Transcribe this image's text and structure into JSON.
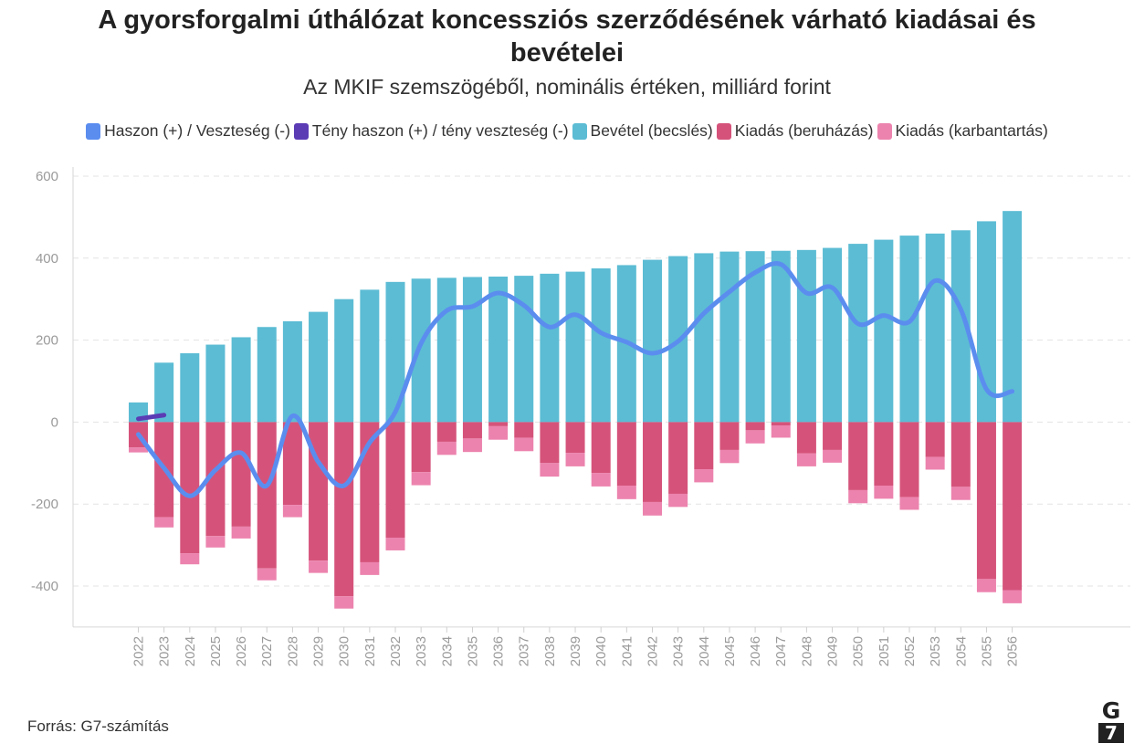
{
  "colors": {
    "haszon": "#5b8def",
    "teny": "#5b3cb5",
    "bevetel": "#5cbcd4",
    "beruhazas": "#d5537b",
    "karbantartas": "#ec83ae"
  },
  "footer": {
    "source": "Forrás: G7-számítás",
    "logo_top": "G",
    "logo_bottom": "7"
  },
  "chart_data": {
    "type": "bar",
    "title": "A gyorsforgalmi úthálózat koncessziós szerződésének várható kiadásai és bevételei",
    "subtitle": "Az MKIF szemszögéből, nominális értéken, milliárd forint",
    "legend": [
      "Haszon (+) / Veszteség (-)",
      "Tény haszon (+) / tény veszteség (-)",
      "Bevétel (becslés)",
      "Kiadás (beruházás)",
      "Kiadás (karbantartás)"
    ],
    "legend_position": "top",
    "ylim": [
      -500,
      600
    ],
    "yticks": [
      -400,
      -200,
      0,
      200,
      400,
      600
    ],
    "grid": true,
    "categories": [
      "2022",
      "2023",
      "2024",
      "2025",
      "2026",
      "2027",
      "2028",
      "2029",
      "2030",
      "2031",
      "2032",
      "2033",
      "2034",
      "2035",
      "2036",
      "2037",
      "2038",
      "2039",
      "2040",
      "2041",
      "2042",
      "2043",
      "2044",
      "2045",
      "2046",
      "2047",
      "2048",
      "2049",
      "2050",
      "2051",
      "2052",
      "2053",
      "2054",
      "2055",
      "2056"
    ],
    "series": [
      {
        "name": "Bevétel (becslés)",
        "type": "bar",
        "values": [
          48,
          145,
          168,
          189,
          207,
          232,
          246,
          269,
          300,
          323,
          342,
          350,
          352,
          354,
          355,
          357,
          362,
          367,
          375,
          383,
          396,
          405,
          412,
          416,
          417,
          418,
          420,
          425,
          435,
          445,
          455,
          460,
          468,
          490,
          515
        ]
      },
      {
        "name": "Kiadás (beruházás)",
        "type": "bar",
        "values": [
          -62,
          -232,
          -320,
          -278,
          -255,
          -357,
          -202,
          -338,
          -425,
          -342,
          -282,
          -122,
          -48,
          -40,
          -10,
          -38,
          -100,
          -75,
          -124,
          -155,
          -195,
          -175,
          -115,
          -68,
          -20,
          -8,
          -76,
          -68,
          -166,
          -155,
          -183,
          -85,
          -158,
          -383,
          -410
        ]
      },
      {
        "name": "Kiadás (karbantartás)",
        "type": "bar",
        "values": [
          -12,
          -25,
          -27,
          -28,
          -29,
          -29,
          -30,
          -30,
          -30,
          -31,
          -31,
          -32,
          -32,
          -33,
          -33,
          -33,
          -33,
          -33,
          -33,
          -33,
          -33,
          -32,
          -32,
          -32,
          -32,
          -30,
          -32,
          -31,
          -32,
          -32,
          -31,
          -31,
          -32,
          -32,
          -32
        ]
      },
      {
        "name": "Haszon (+) / Veszteség (-)",
        "type": "line",
        "values": [
          -30,
          -112,
          -180,
          -117,
          -75,
          -155,
          15,
          -97,
          -155,
          -50,
          25,
          192,
          272,
          282,
          315,
          285,
          232,
          262,
          218,
          195,
          168,
          197,
          265,
          318,
          365,
          385,
          315,
          328,
          240,
          260,
          245,
          345,
          275,
          80,
          75
        ]
      },
      {
        "name": "Tény haszon (+) / tény veszteség (-)",
        "type": "line",
        "x": [
          "2022",
          "2023"
        ],
        "values": [
          8,
          17
        ]
      }
    ]
  }
}
